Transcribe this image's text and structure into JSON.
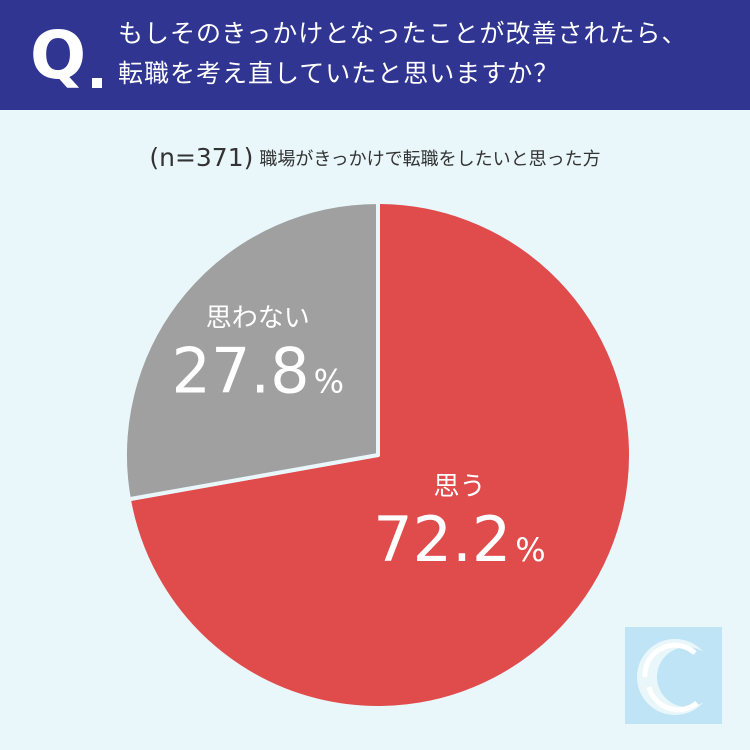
{
  "header": {
    "q_letter": "Q",
    "question_line1": "もしそのきっかけとなったことが改善されたら、",
    "question_line2": "転職を考え直していたと思いますか？"
  },
  "sample": {
    "n": "(n=371)",
    "description": "職場がきっかけで転職をしたいと思った方"
  },
  "chart_data": {
    "type": "pie",
    "title": "",
    "slices": [
      {
        "label": "思う",
        "value": 72.2,
        "value_text": "72.2",
        "unit": "%",
        "color": "#e04b4c"
      },
      {
        "label": "思わない",
        "value": 27.8,
        "value_text": "27.8",
        "unit": "%",
        "color": "#a0a0a0"
      }
    ],
    "start_angle_deg": 0,
    "direction": "clockwise"
  },
  "logo": {
    "icon": "c-logo-icon",
    "color": "#bfe4f5"
  }
}
